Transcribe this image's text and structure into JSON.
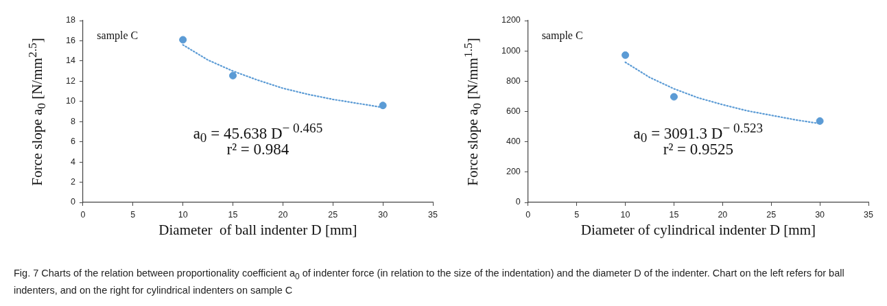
{
  "chart_data": [
    {
      "type": "scatter",
      "xlabel": "Diameter  of ball indenter D [mm]",
      "ylabel": "Force slope a$_{0}$ [N/mm$^{2.5}$]",
      "xlim": [
        0,
        35
      ],
      "xticks": [
        0,
        5,
        10,
        15,
        20,
        25,
        30,
        35
      ],
      "ylim": [
        0,
        18
      ],
      "yticks": [
        0,
        2,
        4,
        6,
        8,
        10,
        12,
        14,
        16,
        18
      ],
      "grid": false,
      "legend": false,
      "marker": "circle",
      "series": [
        {
          "color": "#5b9bd5",
          "x": [
            10,
            15,
            30
          ],
          "values": [
            16.1,
            12.55,
            9.6
          ]
        },
        {
          "type": "line",
          "color": "#5b9bd5",
          "line_style": "dotted",
          "marker": "none",
          "x": [
            10,
            12.5,
            15,
            17.5,
            20,
            22.5,
            25,
            27.5,
            30
          ],
          "values": [
            15.6,
            14.1,
            13.0,
            12.1,
            11.3,
            10.7,
            10.2,
            9.8,
            9.4
          ]
        }
      ],
      "annotations": [
        "sample C",
        "a$_{0}$ = 45.638 D$^{− 0.465}$",
        "r² = 0.984",
        "Fig. 7  Charts of the relation between proportionality coefficient a$_{0}$ of indenter force (in relation to the size of the indentation) and the diameter D of the indenter. Chart on the left refers for ball indenters, and on the right for cylindrical indenters on sample C"
      ]
    },
    {
      "type": "scatter",
      "xlabel": "Diameter of cylindrical indenter D [mm]",
      "ylabel": "Force slope a$_{0}$ [N/mm$^{1.5}$]",
      "xlim": [
        0,
        35
      ],
      "xticks": [
        0,
        5,
        10,
        15,
        20,
        25,
        30,
        35
      ],
      "ylim": [
        0,
        1200
      ],
      "yticks": [
        0,
        200,
        400,
        600,
        800,
        1000,
        1200
      ],
      "grid": false,
      "legend": false,
      "marker": "circle",
      "series": [
        {
          "color": "#5b9bd5",
          "x": [
            10,
            15,
            30
          ],
          "values": [
            972,
            697,
            537
          ]
        },
        {
          "type": "line",
          "color": "#5b9bd5",
          "line_style": "dotted",
          "marker": "none",
          "x": [
            10,
            12.5,
            15,
            17.5,
            20,
            22.5,
            25,
            27.5,
            30
          ],
          "values": [
            925,
            825,
            750,
            690,
            645,
            605,
            575,
            545,
            520
          ]
        }
      ],
      "annotations": [
        "sample C",
        "a$_{0}$ = 3091.3 D$^{− 0.523}$",
        "r² = 0.9525"
      ]
    }
  ]
}
